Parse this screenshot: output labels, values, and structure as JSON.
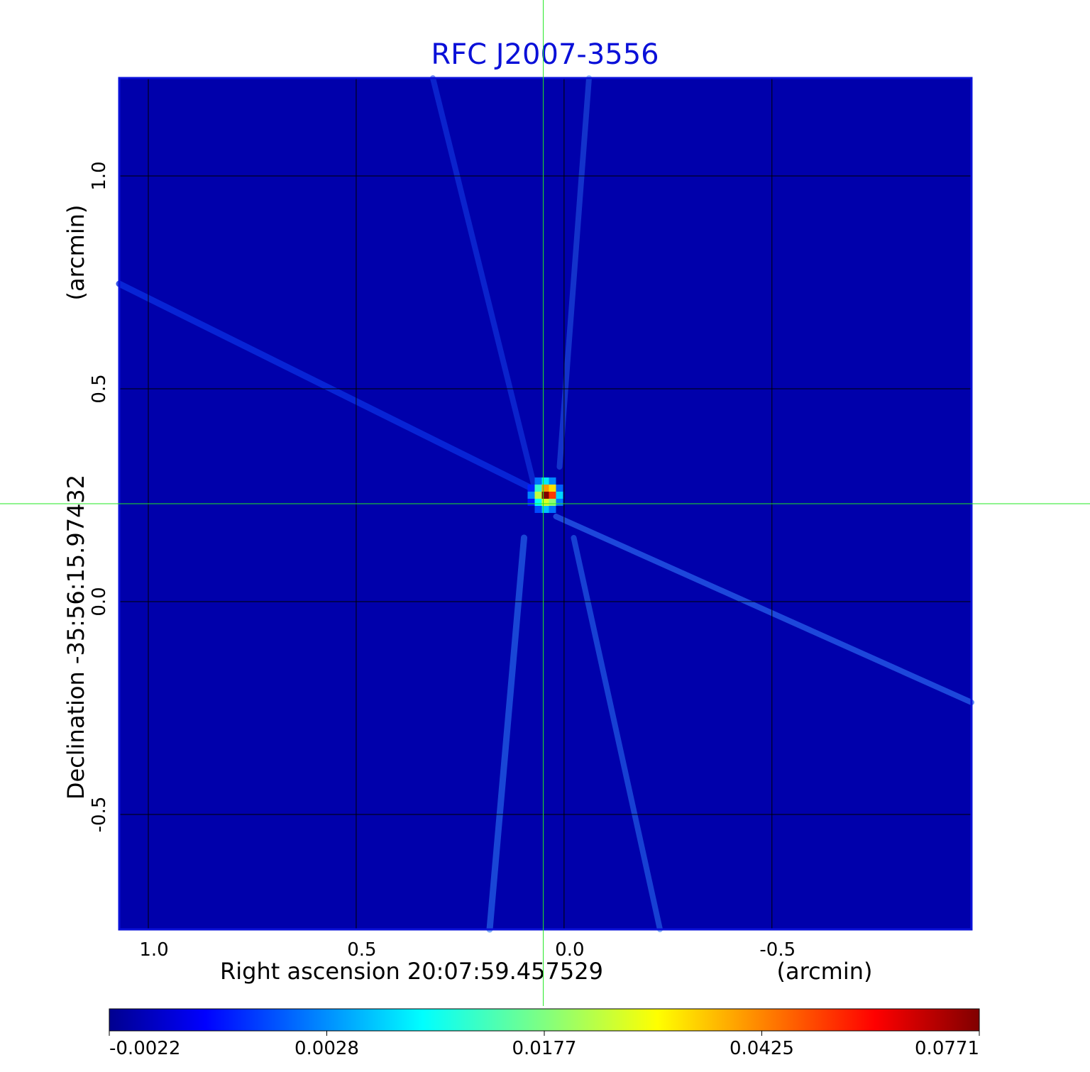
{
  "chart_data": {
    "type": "heatmap",
    "title": "RFC J2007-3556",
    "xlabel": "Right ascension  20:07:59.457529",
    "xunit": "(arcmin)",
    "ylabel": "Declination  -35:56:15.97432",
    "yunit": "(arcmin)",
    "x_ticks": [
      1.0,
      0.5,
      0.0,
      -0.5
    ],
    "x_tick_labels": [
      "1.0",
      "0.5",
      "0.0",
      "-0.5"
    ],
    "y_ticks": [
      1.0,
      0.5,
      0.0,
      -0.5
    ],
    "y_tick_labels": [
      "1.0",
      "0.5",
      "0.0",
      "-0.5"
    ],
    "xlim": [
      1.07,
      -0.98
    ],
    "ylim": [
      -0.77,
      1.23
    ],
    "grid": true,
    "colormap": "jet",
    "colorbar": {
      "placement": "bottom",
      "tick_labels": [
        "-0.0022",
        "0.0028",
        "0.0177",
        "0.0425",
        "0.0771"
      ],
      "tick_values": [
        -0.0022,
        0.0028,
        0.0177,
        0.0425,
        0.0771
      ]
    },
    "peak": {
      "x": 0.045,
      "y": 0.25,
      "value": 0.0771
    },
    "crosshair": {
      "x": 0.05,
      "y": 0.23
    },
    "background_level": 0.0,
    "colors": {
      "title": "#0a10d8",
      "frame": "#0a10d8",
      "crosshair": "#22e822",
      "grid": "#000000"
    }
  }
}
